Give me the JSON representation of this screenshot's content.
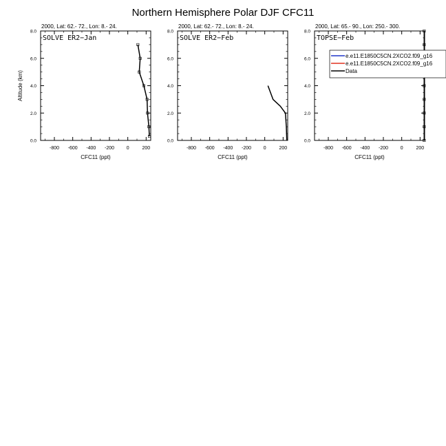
{
  "title": "Northern Hemisphere Polar DJF CFC11",
  "chart_data": [
    {
      "type": "line",
      "header": "2000, Lat: 62.- 72., Lon: 8.- 24.",
      "panel_label": "SOLVE ER2−Jan",
      "xlabel": "CFC11 (ppt)",
      "ylabel": "Altitude (km)",
      "xlim": [
        -950,
        250
      ],
      "ylim": [
        0,
        8
      ],
      "x_ticks": [
        -800,
        -600,
        -400,
        -200,
        0,
        200
      ],
      "y_ticks": [
        0.0,
        2.0,
        4.0,
        6.0,
        8.0
      ],
      "legend": [],
      "series": [
        {
          "name": "Data",
          "color": "#000000",
          "markers": true,
          "points": [
            [
              110,
              7.0
            ],
            [
              135,
              6.0
            ],
            [
              125,
              5.0
            ],
            [
              175,
              4.0
            ],
            [
              210,
              3.0
            ],
            [
              215,
              2.0
            ],
            [
              230,
              1.0
            ],
            [
              235,
              0.3
            ]
          ]
        }
      ]
    },
    {
      "type": "line",
      "header": "2000, Lat: 62.- 72., Lon: 8.- 24.",
      "panel_label": "SOLVE ER2−Feb",
      "xlabel": "CFC11 (ppt)",
      "ylabel": "",
      "xlim": [
        -950,
        250
      ],
      "ylim": [
        0,
        8
      ],
      "x_ticks": [
        -800,
        -600,
        -400,
        -200,
        0,
        200
      ],
      "y_ticks": [
        0.0,
        2.0,
        4.0,
        6.0,
        8.0
      ],
      "legend": [],
      "series": [
        {
          "name": "Data",
          "color": "#000000",
          "markers": false,
          "points": [
            [
              35,
              4.0
            ],
            [
              90,
              3.0
            ],
            [
              170,
              2.5
            ],
            [
              225,
              2.0
            ],
            [
              235,
              1.0
            ],
            [
              240,
              0.0
            ]
          ]
        }
      ]
    },
    {
      "type": "line",
      "header": "2000, Lat: 65.- 90., Lon: 250.- 300.",
      "panel_label": "TOPSE−Feb",
      "xlabel": "CFC11 (ppt)",
      "ylabel": "",
      "xlim": [
        -950,
        250
      ],
      "ylim": [
        0,
        8
      ],
      "x_ticks": [
        -800,
        -600,
        -400,
        -200,
        0,
        200
      ],
      "y_ticks": [
        0.0,
        2.0,
        4.0,
        6.0,
        8.0
      ],
      "legend": [
        {
          "label": "e.e11.E1850C5CN.2XCO2.f09_g16",
          "color": "#1f35c8"
        },
        {
          "label": "e.e11.E1850C5CN.2XCO2.f09_g16",
          "color": "#e0301e"
        },
        {
          "label": "Data",
          "color": "#000000"
        }
      ],
      "series": [
        {
          "name": "Data",
          "color": "#000000",
          "markers": true,
          "points": [
            [
              245,
              0.0
            ],
            [
              245,
              1.0
            ],
            [
              245,
              2.0
            ],
            [
              245,
              3.0
            ],
            [
              245,
              4.0
            ],
            [
              245,
              5.0
            ],
            [
              245,
              6.0
            ],
            [
              245,
              7.0
            ],
            [
              245,
              8.0
            ]
          ]
        }
      ]
    }
  ]
}
